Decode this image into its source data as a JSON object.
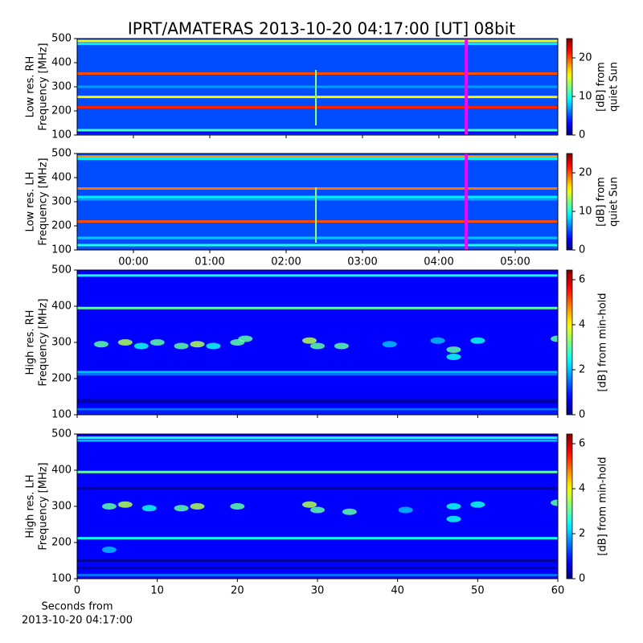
{
  "chart_data": [
    {
      "type": "spectrogram",
      "title": "IPRT/AMATERAS 2013-10-20 04:17:00 [UT]   08bit",
      "ylabel": [
        "Low res. RH",
        "Frequency [MHz]"
      ],
      "colormap": "jet",
      "xlim": [
        -0.737,
        5.558
      ],
      "xticks": [
        0,
        1,
        2,
        3,
        4,
        5
      ],
      "tick_labels": false,
      "ylim": [
        100,
        500
      ],
      "yticks": [
        100,
        200,
        300,
        400,
        500
      ],
      "colorbar": {
        "label": [
          "[dB] from",
          "quiet Sun"
        ],
        "lim": [
          0,
          25
        ],
        "ticks": [
          0,
          10,
          20
        ]
      },
      "background": 5,
      "bands": [
        {
          "y": 490,
          "value": 15
        },
        {
          "y": 478,
          "value": 9
        },
        {
          "y": 355,
          "value": 20
        },
        {
          "y": 300,
          "value": 7
        },
        {
          "y": 258,
          "value": 16
        },
        {
          "y": 215,
          "value": 21
        },
        {
          "y": 120,
          "value": 11
        },
        {
          "y": 110,
          "value": 3
        }
      ],
      "bursts": [
        {
          "x": 2.39,
          "y": [
            140,
            370
          ],
          "value": 13
        }
      ],
      "cursor": {
        "x": 4.36,
        "color": "#ff00ff"
      }
    },
    {
      "type": "spectrogram",
      "ylabel": [
        "Low res. LH",
        "Frequency [MHz]"
      ],
      "colormap": "jet",
      "xlim": [
        -0.737,
        5.558
      ],
      "xticks": [
        {
          "value": 0,
          "label": "00:00"
        },
        {
          "value": 1,
          "label": "01:00"
        },
        {
          "value": 2,
          "label": "02:00"
        },
        {
          "value": 3,
          "label": "03:00"
        },
        {
          "value": 4,
          "label": "04:00"
        },
        {
          "value": 5,
          "label": "05:00"
        }
      ],
      "ylim": [
        100,
        500
      ],
      "yticks": [
        100,
        200,
        300,
        400,
        500
      ],
      "colorbar": {
        "label": [
          "[dB] from",
          "quiet Sun"
        ],
        "lim": [
          0,
          25
        ],
        "ticks": [
          0,
          10,
          20
        ]
      },
      "background": 5,
      "bands": [
        {
          "y": 487,
          "value": 18
        },
        {
          "y": 478,
          "value": 9
        },
        {
          "y": 355,
          "value": 19
        },
        {
          "y": 320,
          "value": 9
        },
        {
          "y": 310,
          "value": 7
        },
        {
          "y": 218,
          "value": 20
        },
        {
          "y": 150,
          "value": 8
        },
        {
          "y": 120,
          "value": 10
        }
      ],
      "bursts": [
        {
          "x": 2.39,
          "y": [
            130,
            360
          ],
          "value": 13
        }
      ],
      "cursor": {
        "x": 4.36,
        "color": "#ff00ff"
      }
    },
    {
      "type": "spectrogram",
      "ylabel": [
        "High res. RH",
        "Frequency [MHz]"
      ],
      "colormap": "jet",
      "xlim": [
        0,
        60
      ],
      "xticks": [
        0,
        10,
        20,
        30,
        40,
        50,
        60
      ],
      "tick_labels": false,
      "ylim": [
        100,
        500
      ],
      "yticks": [
        100,
        200,
        300,
        400,
        500
      ],
      "colorbar": {
        "label": [
          "[dB] from min-hold"
        ],
        "lim": [
          0,
          6.43
        ],
        "ticks": [
          0,
          2,
          4,
          6
        ]
      },
      "background": 0.8,
      "bands": [
        {
          "y": 485,
          "value": 2.5
        },
        {
          "y": 395,
          "value": 3
        },
        {
          "y": 218,
          "value": 2
        },
        {
          "y": 212,
          "value": 1.5
        },
        {
          "y": 140,
          "value": 0.2
        },
        {
          "y": 135,
          "value": 0.3
        },
        {
          "y": 115,
          "value": 1.5
        },
        {
          "y": 105,
          "value": 1
        }
      ],
      "blobs": [
        {
          "x": 3,
          "y": 295,
          "value": 3
        },
        {
          "x": 6,
          "y": 300,
          "value": 3.5
        },
        {
          "x": 8,
          "y": 290,
          "value": 2.5
        },
        {
          "x": 10,
          "y": 300,
          "value": 3
        },
        {
          "x": 13,
          "y": 290,
          "value": 3
        },
        {
          "x": 15,
          "y": 295,
          "value": 3.5
        },
        {
          "x": 17,
          "y": 290,
          "value": 2.5
        },
        {
          "x": 20,
          "y": 300,
          "value": 3
        },
        {
          "x": 21,
          "y": 310,
          "value": 3
        },
        {
          "x": 29,
          "y": 305,
          "value": 3.5
        },
        {
          "x": 30,
          "y": 290,
          "value": 3
        },
        {
          "x": 33,
          "y": 290,
          "value": 3
        },
        {
          "x": 39,
          "y": 295,
          "value": 2
        },
        {
          "x": 45,
          "y": 305,
          "value": 2
        },
        {
          "x": 47,
          "y": 280,
          "value": 3
        },
        {
          "x": 47,
          "y": 260,
          "value": 2.5
        },
        {
          "x": 50,
          "y": 305,
          "value": 2.5
        },
        {
          "x": 60,
          "y": 310,
          "value": 3
        }
      ]
    },
    {
      "type": "spectrogram",
      "ylabel": [
        "High res. LH",
        "Frequency [MHz]"
      ],
      "colormap": "jet",
      "xlabel": [
        "Seconds from",
        "2013-10-20 04:17:00"
      ],
      "xlim": [
        0,
        60
      ],
      "xticks": [
        0,
        10,
        20,
        30,
        40,
        50,
        60
      ],
      "ylim": [
        100,
        500
      ],
      "yticks": [
        100,
        200,
        300,
        400,
        500
      ],
      "colorbar": {
        "label": [
          "[dB] from min-hold"
        ],
        "lim": [
          0,
          6.43
        ],
        "ticks": [
          0,
          2,
          4,
          6
        ]
      },
      "background": 0.8,
      "bands": [
        {
          "y": 490,
          "value": 2.5
        },
        {
          "y": 482,
          "value": 2
        },
        {
          "y": 395,
          "value": 3
        },
        {
          "y": 350,
          "value": 0.3
        },
        {
          "y": 212,
          "value": 2.5
        },
        {
          "y": 150,
          "value": 0.2
        },
        {
          "y": 130,
          "value": 0.2
        },
        {
          "y": 110,
          "value": 1.5
        }
      ],
      "blobs": [
        {
          "x": 4,
          "y": 300,
          "value": 3
        },
        {
          "x": 6,
          "y": 305,
          "value": 3.5
        },
        {
          "x": 9,
          "y": 295,
          "value": 2.5
        },
        {
          "x": 13,
          "y": 295,
          "value": 3
        },
        {
          "x": 15,
          "y": 300,
          "value": 3.5
        },
        {
          "x": 20,
          "y": 300,
          "value": 3
        },
        {
          "x": 29,
          "y": 305,
          "value": 3.5
        },
        {
          "x": 30,
          "y": 290,
          "value": 3
        },
        {
          "x": 34,
          "y": 285,
          "value": 3
        },
        {
          "x": 41,
          "y": 290,
          "value": 2
        },
        {
          "x": 47,
          "y": 300,
          "value": 2.5
        },
        {
          "x": 47,
          "y": 265,
          "value": 2.5
        },
        {
          "x": 50,
          "y": 305,
          "value": 2.5
        },
        {
          "x": 60,
          "y": 310,
          "value": 3
        },
        {
          "x": 4,
          "y": 180,
          "value": 2
        }
      ]
    }
  ]
}
